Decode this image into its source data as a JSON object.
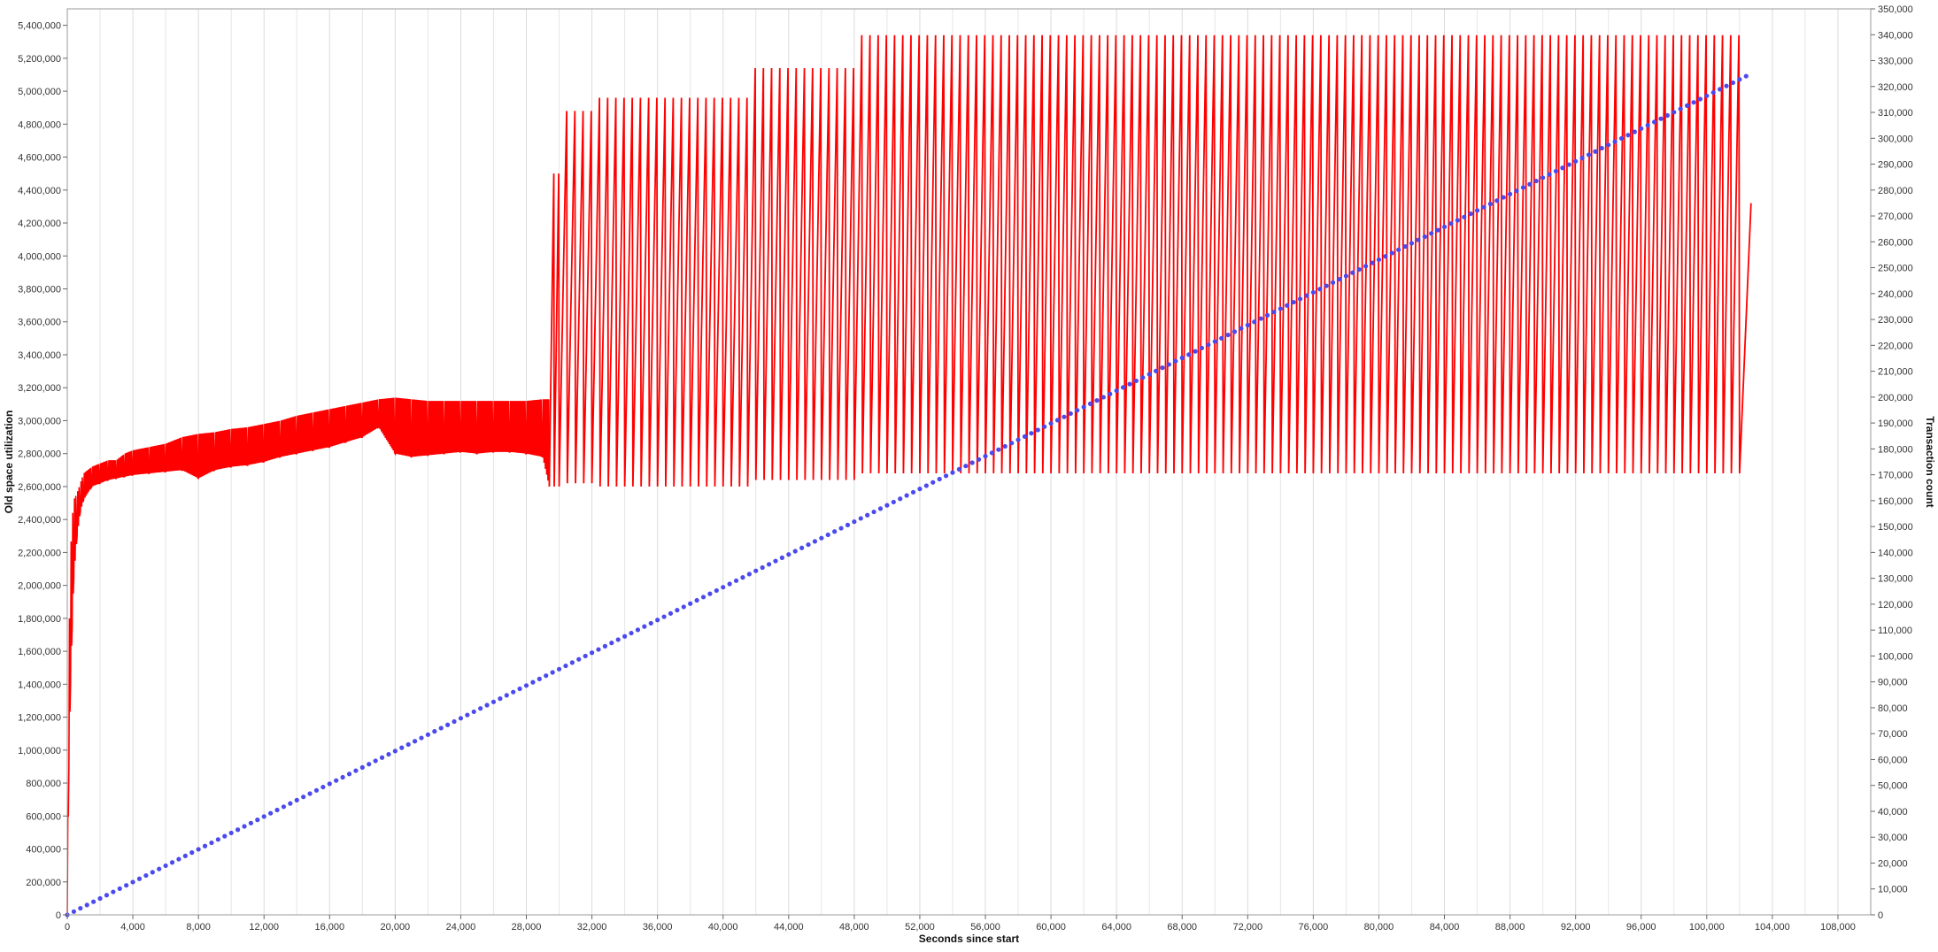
{
  "chart_data": {
    "type": "line",
    "title": "",
    "xlabel": "Seconds since start",
    "ylabel": "Old space utilization",
    "y2label": "Transaction count",
    "xlim": [
      0,
      110000
    ],
    "ylim": [
      0,
      5500000
    ],
    "y2lim": [
      0,
      350000
    ],
    "grid": "vertical",
    "legend": "none",
    "x_ticks": [
      "0",
      "4,000",
      "8,000",
      "12,000",
      "16,000",
      "20,000",
      "24,000",
      "28,000",
      "32,000",
      "36,000",
      "40,000",
      "44,000",
      "48,000",
      "52,000",
      "56,000",
      "60,000",
      "64,000",
      "68,000",
      "72,000",
      "76,000",
      "80,000",
      "84,000",
      "88,000",
      "92,000",
      "96,000",
      "100,000",
      "104,000",
      "108,000"
    ],
    "y_ticks": [
      "0",
      "200,000",
      "400,000",
      "600,000",
      "800,000",
      "1,000,000",
      "1,200,000",
      "1,400,000",
      "1,600,000",
      "1,800,000",
      "2,000,000",
      "2,200,000",
      "2,400,000",
      "2,600,000",
      "2,800,000",
      "3,000,000",
      "3,200,000",
      "3,400,000",
      "3,600,000",
      "3,800,000",
      "4,000,000",
      "4,200,000",
      "4,400,000",
      "4,600,000",
      "4,800,000",
      "5,000,000",
      "5,200,000",
      "5,400,000"
    ],
    "y2_ticks": [
      "0",
      "10,000",
      "20,000",
      "30,000",
      "40,000",
      "50,000",
      "60,000",
      "70,000",
      "80,000",
      "90,000",
      "100,000",
      "110,000",
      "120,000",
      "130,000",
      "140,000",
      "150,000",
      "160,000",
      "170,000",
      "180,000",
      "190,000",
      "200,000",
      "210,000",
      "220,000",
      "230,000",
      "240,000",
      "250,000",
      "260,000",
      "270,000",
      "280,000",
      "290,000",
      "300,000",
      "310,000",
      "320,000",
      "330,000",
      "340,000",
      "350,000"
    ],
    "series": [
      {
        "axis": "left",
        "style": "line",
        "color": "#ff0000",
        "warmup": {
          "x": [
            0,
            100,
            200,
            300,
            400,
            600,
            800,
            1000,
            1500,
            2000,
            2500,
            3000,
            3500,
            4000,
            5000,
            6000,
            7000,
            8000,
            9000,
            10000,
            11000,
            12000,
            13000,
            14000,
            15000,
            16000,
            17000,
            18000,
            19000,
            20000,
            21000,
            22000,
            23000,
            24000,
            25000,
            26000,
            27000,
            28000,
            29000,
            29400
          ],
          "low": [
            0,
            900000,
            1400000,
            1750000,
            2050000,
            2300000,
            2450000,
            2520000,
            2600000,
            2620000,
            2640000,
            2650000,
            2660000,
            2670000,
            2680000,
            2690000,
            2700000,
            2650000,
            2700000,
            2720000,
            2730000,
            2750000,
            2780000,
            2800000,
            2820000,
            2840000,
            2870000,
            2900000,
            2960000,
            2800000,
            2780000,
            2790000,
            2800000,
            2810000,
            2800000,
            2810000,
            2810000,
            2800000,
            2780000,
            2600000
          ],
          "high": [
            100000,
            1600000,
            2200000,
            2400000,
            2520000,
            2560000,
            2620000,
            2680000,
            2720000,
            2740000,
            2760000,
            2760000,
            2800000,
            2820000,
            2840000,
            2860000,
            2900000,
            2920000,
            2930000,
            2950000,
            2960000,
            2980000,
            3000000,
            3030000,
            3050000,
            3070000,
            3090000,
            3110000,
            3130000,
            3140000,
            3130000,
            3120000,
            3120000,
            3120000,
            3120000,
            3120000,
            3120000,
            3120000,
            3130000,
            3130000
          ]
        },
        "cycles": [
          {
            "from": 29400,
            "to": 30000,
            "period": 300,
            "low": 2600000,
            "high": 4500000
          },
          {
            "from": 30000,
            "to": 32000,
            "period": 500,
            "low": 2620000,
            "high": 4880000
          },
          {
            "from": 32000,
            "to": 41500,
            "period": 500,
            "low": 2600000,
            "high": 4960000
          },
          {
            "from": 41500,
            "to": 48000,
            "period": 500,
            "low": 2640000,
            "high": 5140000
          },
          {
            "from": 48000,
            "to": 102300,
            "period": 500,
            "low": 2680000,
            "high": 5340000
          }
        ],
        "last_point": [
          102700,
          4320000
        ]
      },
      {
        "axis": "right",
        "style": "dots",
        "color": "#4a4aee",
        "x_start": 0,
        "x_end": 102400,
        "x_step": 400,
        "y_start": 0,
        "y_end": 324000
      }
    ]
  }
}
